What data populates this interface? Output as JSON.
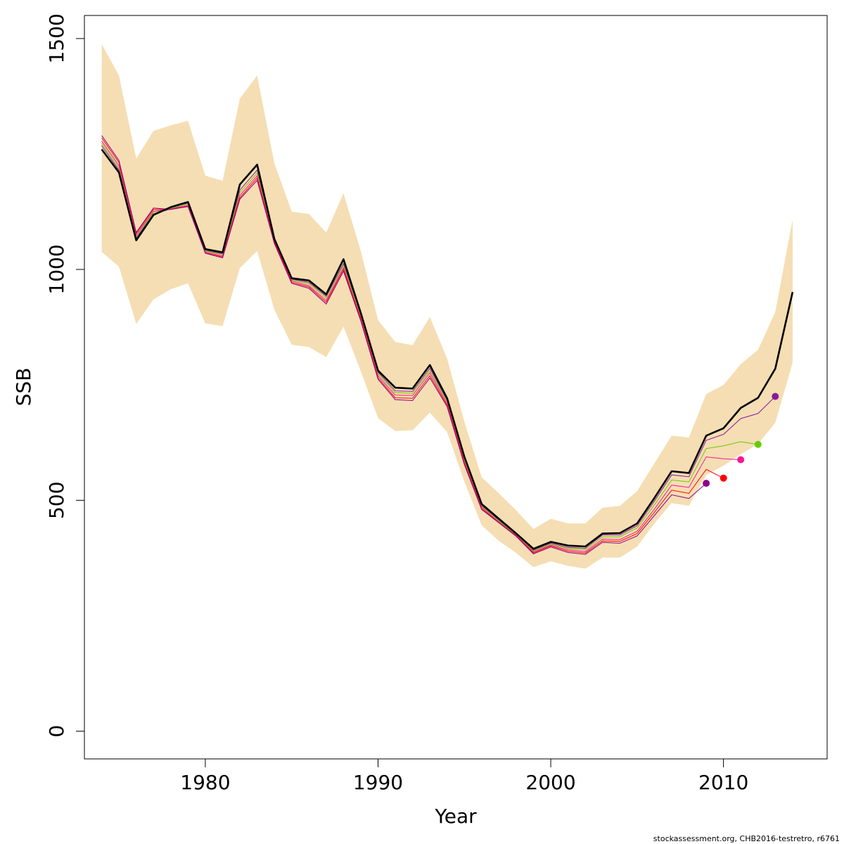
{
  "chart_data": {
    "type": "line",
    "xlabel": "Year",
    "ylabel": "SSB",
    "xlim": [
      1973,
      2016
    ],
    "ylim": [
      -60,
      1550
    ],
    "x_ticks": [
      "1980",
      "1990",
      "2000",
      "2010"
    ],
    "y_ticks": [
      "0",
      "500",
      "1000",
      "1500"
    ],
    "grid": false,
    "legend": "none",
    "footer": "stockassessment.org, CHB2016-testretro, r6761",
    "colors": {
      "band": "#f5deb3",
      "main": "#000000",
      "peels": [
        "#8b008b",
        "#ff0000",
        "#ff1493",
        "#66cd00",
        "#8b1a9b"
      ]
    },
    "years": [
      1974,
      1975,
      1976,
      1977,
      1978,
      1979,
      1980,
      1981,
      1982,
      1983,
      1984,
      1985,
      1986,
      1987,
      1988,
      1989,
      1990,
      1991,
      1992,
      1993,
      1994,
      1995,
      1996,
      1997,
      1998,
      1999,
      2000,
      2001,
      2002,
      2003,
      2004,
      2005,
      2006,
      2007,
      2008,
      2009,
      2010,
      2011,
      2012,
      2013,
      2014
    ],
    "band": {
      "upper": [
        1488,
        1420,
        1240,
        1300,
        1312,
        1322,
        1203,
        1192,
        1370,
        1420,
        1230,
        1125,
        1120,
        1080,
        1165,
        1040,
        890,
        843,
        836,
        897,
        807,
        670,
        550,
        515,
        478,
        438,
        460,
        450,
        450,
        484,
        488,
        520,
        580,
        640,
        636,
        730,
        750,
        795,
        826,
        908,
        1108
      ],
      "lower": [
        1038,
        1006,
        882,
        935,
        957,
        970,
        883,
        877,
        1003,
        1040,
        913,
        837,
        832,
        810,
        876,
        780,
        678,
        650,
        652,
        690,
        648,
        540,
        446,
        412,
        386,
        355,
        368,
        358,
        352,
        376,
        376,
        400,
        450,
        494,
        488,
        555,
        575,
        600,
        622,
        668,
        798
      ]
    },
    "series": [
      {
        "name": "",
        "x": [
          1974,
          1975,
          1976,
          1977,
          1978,
          1979,
          1980,
          1981,
          1982,
          1983,
          1984,
          1985,
          1986,
          1987,
          1988,
          1989,
          1990,
          1991,
          1992,
          1993,
          1994,
          1995,
          1996,
          1997,
          1998,
          1999,
          2000,
          2001,
          2002,
          2003,
          2004,
          2005,
          2006,
          2007,
          2008,
          2009,
          2010,
          2011,
          2012,
          2013,
          2014
        ],
        "y": [
          1260,
          1210,
          1063,
          1118,
          1135,
          1146,
          1044,
          1037,
          1184,
          1227,
          1066,
          981,
          976,
          946,
          1022,
          906,
          781,
          744,
          742,
          793,
          721,
          594,
          492,
          460,
          428,
          395,
          410,
          402,
          400,
          428,
          429,
          450,
          505,
          563,
          559,
          640,
          656,
          700,
          722,
          785,
          951
        ]
      },
      {
        "name": "",
        "x": [
          1974,
          1975,
          1976,
          1977,
          1978,
          1979,
          1980,
          1981,
          1982,
          1983,
          1984,
          1985,
          1986,
          1987,
          1988,
          1989,
          1990,
          1991,
          1992,
          1993,
          1994,
          1995,
          1996,
          1997,
          1998,
          1999,
          2000,
          2001,
          2002,
          2003,
          2004,
          2005,
          2006,
          2007,
          2008,
          2009,
          2010,
          2011,
          2012,
          2013
        ],
        "y": [
          1268,
          1215,
          1068,
          1120,
          1131,
          1143,
          1041,
          1034,
          1172,
          1215,
          1064,
          979,
          972,
          942,
          1013,
          902,
          777,
          737,
          736,
          786,
          717,
          590,
          489,
          457,
          426,
          392,
          407,
          398,
          396,
          425,
          425,
          445,
          498,
          555,
          551,
          630,
          643,
          677,
          688,
          725
        ]
      },
      {
        "name": "",
        "x": [
          1974,
          1975,
          1976,
          1977,
          1978,
          1979,
          1980,
          1981,
          1982,
          1983,
          1984,
          1985,
          1986,
          1987,
          1988,
          1989,
          1990,
          1991,
          1992,
          1993,
          1994,
          1995,
          1996,
          1997,
          1998,
          1999,
          2000,
          2001,
          2002,
          2003,
          2004,
          2005,
          2006,
          2007,
          2008,
          2009,
          2010,
          2011,
          2012
        ],
        "y": [
          1273,
          1220,
          1071,
          1123,
          1132,
          1142,
          1040,
          1032,
          1166,
          1209,
          1062,
          977,
          969,
          938,
          1009,
          899,
          773,
          733,
          732,
          781,
          714,
          587,
          487,
          455,
          425,
          390,
          405,
          396,
          393,
          421,
          421,
          440,
          490,
          544,
          540,
          612,
          618,
          627,
          621
        ]
      },
      {
        "name": "",
        "x": [
          1974,
          1975,
          1976,
          1977,
          1978,
          1979,
          1980,
          1981,
          1982,
          1983,
          1984,
          1985,
          1986,
          1987,
          1988,
          1989,
          1990,
          1991,
          1992,
          1993,
          1994,
          1995,
          1996,
          1997,
          1998,
          1999,
          2000,
          2001,
          2002,
          2003,
          2004,
          2005,
          2006,
          2007,
          2008,
          2009,
          2010,
          2011
        ],
        "y": [
          1278,
          1225,
          1074,
          1126,
          1131,
          1139,
          1038,
          1029,
          1160,
          1203,
          1060,
          975,
          965,
          933,
          1004,
          895,
          769,
          728,
          727,
          776,
          710,
          583,
          485,
          453,
          424,
          388,
          403,
          393,
          389,
          416,
          415,
          433,
          481,
          533,
          528,
          594,
          590,
          588
        ]
      },
      {
        "name": "",
        "x": [
          1974,
          1975,
          1976,
          1977,
          1978,
          1979,
          1980,
          1981,
          1982,
          1983,
          1984,
          1985,
          1986,
          1987,
          1988,
          1989,
          1990,
          1991,
          1992,
          1993,
          1994,
          1995,
          1996,
          1997,
          1998,
          1999,
          2000,
          2001,
          2002,
          2003,
          2004,
          2005,
          2006,
          2007,
          2008,
          2009,
          2010
        ],
        "y": [
          1285,
          1232,
          1078,
          1130,
          1130,
          1137,
          1036,
          1027,
          1155,
          1198,
          1058,
          972,
          962,
          929,
          1000,
          892,
          765,
          722,
          721,
          770,
          706,
          580,
          482,
          452,
          423,
          386,
          401,
          390,
          386,
          412,
          411,
          428,
          474,
          522,
          515,
          567,
          548
        ]
      },
      {
        "name": "",
        "x": [
          1974,
          1975,
          1976,
          1977,
          1978,
          1979,
          1980,
          1981,
          1982,
          1983,
          1984,
          1985,
          1986,
          1987,
          1988,
          1989,
          1990,
          1991,
          1992,
          1993,
          1994,
          1995,
          1996,
          1997,
          1998,
          1999,
          2000,
          2001,
          2002,
          2003,
          2004,
          2005,
          2006,
          2007,
          2008,
          2009
        ],
        "y": [
          1290,
          1236,
          1080,
          1133,
          1130,
          1136,
          1035,
          1025,
          1152,
          1193,
          1056,
          970,
          959,
          925,
          996,
          889,
          762,
          718,
          716,
          765,
          703,
          577,
          480,
          451,
          422,
          384,
          399,
          387,
          383,
          409,
          407,
          423,
          467,
          512,
          504,
          537
        ]
      }
    ]
  }
}
